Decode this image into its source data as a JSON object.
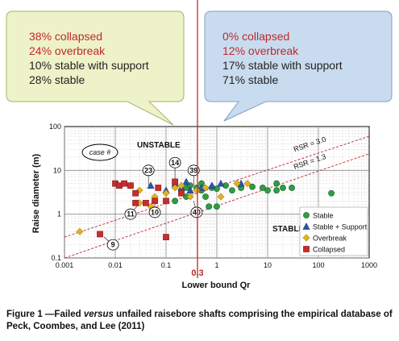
{
  "callouts": {
    "left": {
      "lines": [
        {
          "text": "38% collapsed",
          "color": "#c0282d"
        },
        {
          "text": "24% overbreak",
          "color": "#c0282d"
        },
        {
          "text": "10% stable with support",
          "color": "#222222"
        },
        {
          "text": "28% stable",
          "color": "#222222"
        }
      ],
      "fill": "#eef2c8"
    },
    "right": {
      "lines": [
        {
          "text": "0% collapsed",
          "color": "#c0282d"
        },
        {
          "text": "12% overbreak",
          "color": "#c0282d"
        },
        {
          "text": "17% stable with support",
          "color": "#222222"
        },
        {
          "text": "71% stable",
          "color": "#222222"
        }
      ],
      "fill": "#c9dcef"
    }
  },
  "caption": {
    "part1": "Figure 1 —Failed ",
    "italic": "versus",
    "part2": " unfailed raisebore shafts comprising the empirical database of Peck, Coombes, and Lee (2011)"
  },
  "chart_data": {
    "type": "scatter",
    "xlabel": "Lower bound Qr",
    "ylabel": "Raise diameter (m)",
    "xscale": "log",
    "yscale": "log",
    "xlim": [
      0.001,
      1000
    ],
    "ylim": [
      0.1,
      100
    ],
    "xticks": [
      "0.001",
      "0.01",
      "0.1",
      "1",
      "10",
      "100",
      "1000"
    ],
    "yticks": [
      "0.1",
      "1",
      "10",
      "100"
    ],
    "grid": true,
    "region_labels": [
      {
        "text": "UNSTABLE",
        "x": 0.06,
        "y": 50
      },
      {
        "text": "STABLE",
        "x": 5,
        "y": 0.8
      }
    ],
    "case_label": "case #",
    "vertical_line": {
      "x": 0.3,
      "label": "0.3",
      "color": "#c0282d"
    },
    "rsr_lines": [
      {
        "name": "RSR = 3.0",
        "points": [
          [
            0.001,
            0.3
          ],
          [
            1000,
            60
          ]
        ],
        "label_at": [
          70,
          35
        ]
      },
      {
        "name": "RSR = 1.3",
        "points": [
          [
            0.001,
            0.1
          ],
          [
            1000,
            24
          ]
        ],
        "label_at": [
          70,
          14
        ]
      }
    ],
    "case_numbers": [
      {
        "label": "23",
        "x": 0.045,
        "y": 10,
        "px": 0.045,
        "py": 4.5
      },
      {
        "label": "14",
        "x": 0.15,
        "y": 15,
        "px": 0.15,
        "py": 6
      },
      {
        "label": "39",
        "x": 0.35,
        "y": 10,
        "px": 0.35,
        "py": 4.5
      },
      {
        "label": "11",
        "x": 0.02,
        "y": 1.0,
        "px": 0.03,
        "py": 1.8
      },
      {
        "label": "10",
        "x": 0.06,
        "y": 1.1,
        "px": 0.06,
        "py": 1.8
      },
      {
        "label": "40",
        "x": 0.4,
        "y": 1.1,
        "px": 0.35,
        "py": 2.0
      },
      {
        "label": "9",
        "x": 0.009,
        "y": 0.2,
        "px": 0.006,
        "py": 0.3
      }
    ],
    "series": [
      {
        "name": "Stable",
        "marker": "circle",
        "color": "#2e9d43",
        "points": [
          [
            0.2,
            3.5
          ],
          [
            0.25,
            4.0
          ],
          [
            0.3,
            4.5
          ],
          [
            0.4,
            4.0
          ],
          [
            0.5,
            3.5
          ],
          [
            0.6,
            2.5
          ],
          [
            0.7,
            1.5
          ],
          [
            1.0,
            1.5
          ],
          [
            1.0,
            3.8
          ],
          [
            1.5,
            4.5
          ],
          [
            2.0,
            3.5
          ],
          [
            3.0,
            4.0
          ],
          [
            5.0,
            4.2
          ],
          [
            8.0,
            4.0
          ],
          [
            10,
            3.5
          ],
          [
            15,
            5.0
          ],
          [
            15,
            3.5
          ],
          [
            20,
            4.0
          ],
          [
            30,
            4.0
          ],
          [
            180,
            3.0
          ],
          [
            0.15,
            2.0
          ],
          [
            0.25,
            2.5
          ],
          [
            0.5,
            5.0
          ],
          [
            0.8,
            4.0
          ]
        ]
      },
      {
        "name": "Stable + Support",
        "marker": "triangle",
        "color": "#2b55a8",
        "points": [
          [
            0.05,
            4.5
          ],
          [
            0.1,
            3.5
          ],
          [
            0.15,
            5.0
          ],
          [
            0.2,
            4.0
          ],
          [
            0.25,
            5.5
          ],
          [
            0.3,
            3.5
          ],
          [
            0.5,
            4.0
          ],
          [
            0.8,
            4.5
          ],
          [
            1.2,
            5.0
          ],
          [
            3.0,
            5.0
          ]
        ]
      },
      {
        "name": "Overbreak",
        "marker": "diamond",
        "color": "#e3b21b",
        "points": [
          [
            0.002,
            0.4
          ],
          [
            0.02,
            4.5
          ],
          [
            0.03,
            3.5
          ],
          [
            0.03,
            1.8
          ],
          [
            0.05,
            1.5
          ],
          [
            0.06,
            2.5
          ],
          [
            0.1,
            3.0
          ],
          [
            0.15,
            4.0
          ],
          [
            0.2,
            4.5
          ],
          [
            0.3,
            2.5
          ],
          [
            0.6,
            4.0
          ],
          [
            1.2,
            2.5
          ],
          [
            2.5,
            5.0
          ],
          [
            4.0,
            5.0
          ],
          [
            0.4,
            3.5
          ]
        ]
      },
      {
        "name": "Collapsed",
        "marker": "square",
        "color": "#c82c2c",
        "points": [
          [
            0.005,
            0.35
          ],
          [
            0.01,
            5.0
          ],
          [
            0.012,
            4.5
          ],
          [
            0.015,
            5.0
          ],
          [
            0.02,
            4.5
          ],
          [
            0.025,
            3.0
          ],
          [
            0.025,
            1.8
          ],
          [
            0.04,
            1.8
          ],
          [
            0.06,
            2.0
          ],
          [
            0.1,
            0.3
          ],
          [
            0.1,
            2.0
          ],
          [
            0.15,
            5.5
          ],
          [
            0.2,
            3.0
          ],
          [
            0.07,
            4.0
          ]
        ]
      }
    ],
    "legend_position": "lower-right"
  }
}
